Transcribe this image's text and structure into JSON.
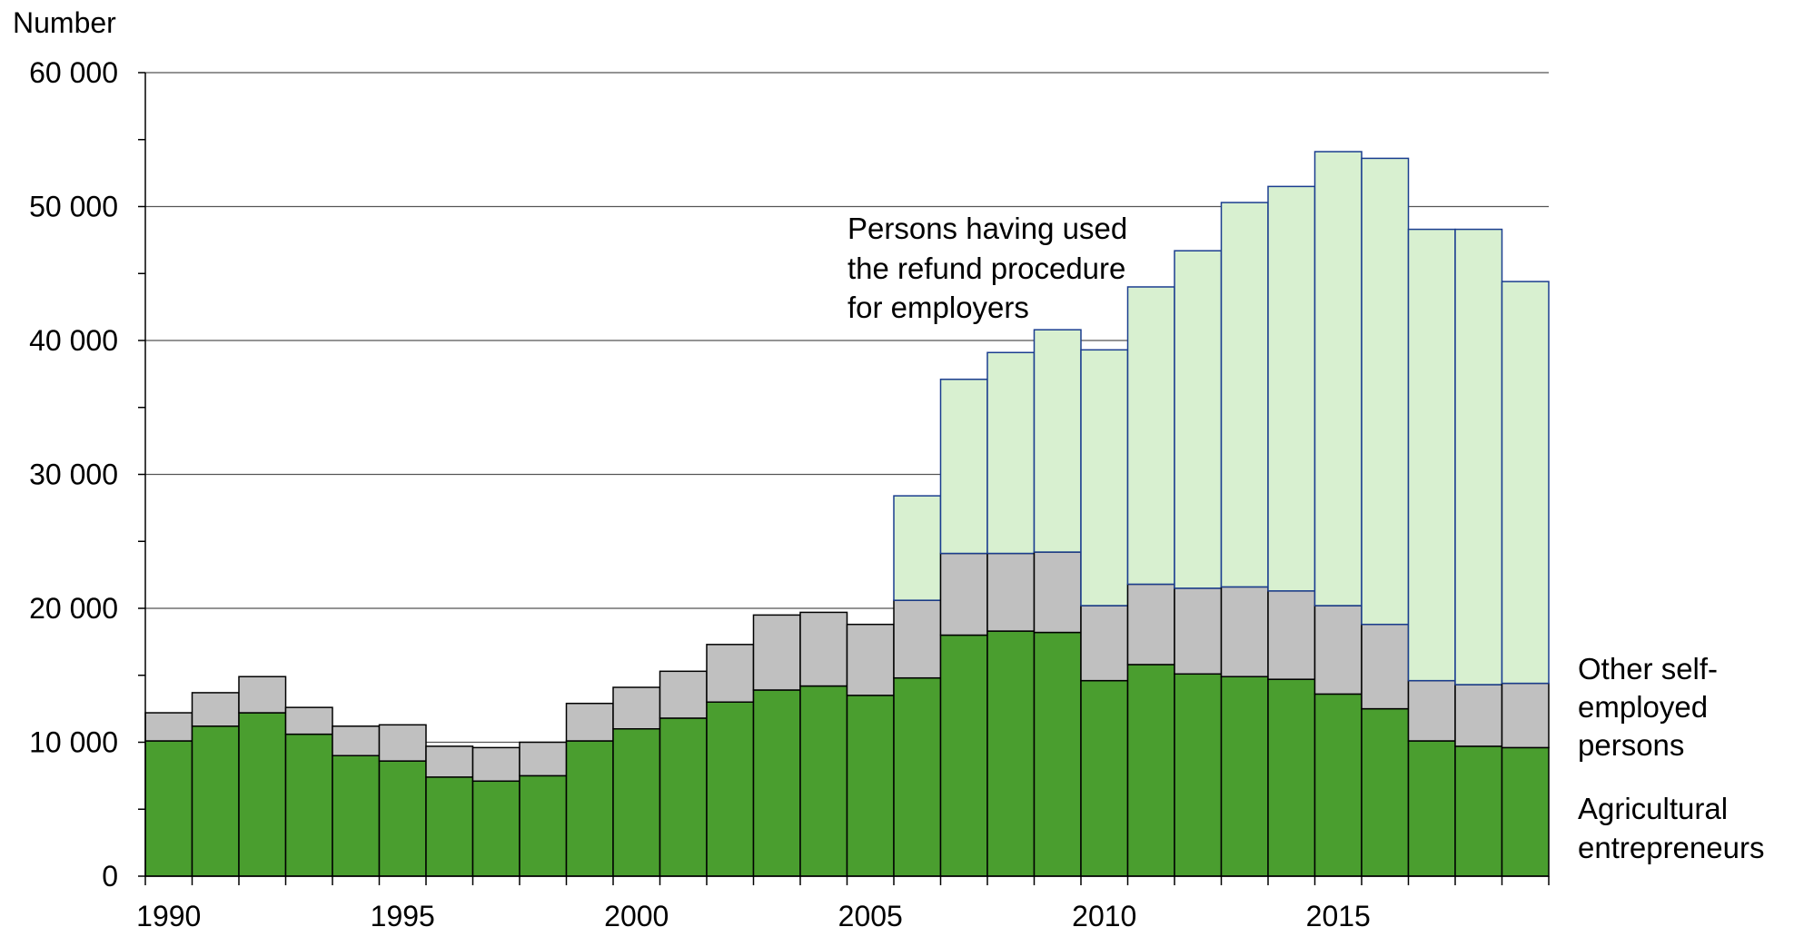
{
  "chart_data": {
    "type": "bar",
    "stacked": true,
    "ylabel": "Number",
    "ylim": [
      0,
      60000
    ],
    "y_ticks": [
      0,
      10000,
      20000,
      30000,
      40000,
      50000,
      60000
    ],
    "y_tick_labels": [
      "0",
      "10 000",
      "20 000",
      "30 000",
      "40 000",
      "50 000",
      "60 000"
    ],
    "x_tick_labels": [
      "1990",
      "1995",
      "2000",
      "2005",
      "2010",
      "2015"
    ],
    "categories": [
      1990,
      1991,
      1992,
      1993,
      1994,
      1995,
      1996,
      1997,
      1998,
      1999,
      2000,
      2001,
      2002,
      2003,
      2004,
      2005,
      2006,
      2007,
      2008,
      2009,
      2010,
      2011,
      2012,
      2013,
      2014,
      2015,
      2016,
      2017,
      2018,
      2019
    ],
    "grid": true,
    "legend": "inline labels",
    "series": [
      {
        "name": "Agricultural entrepreneurs",
        "color": "#4a9e2f",
        "values": [
          10100,
          11200,
          12200,
          10600,
          9000,
          8600,
          7400,
          7100,
          7500,
          10100,
          11000,
          11800,
          13000,
          13900,
          14200,
          13500,
          14800,
          18000,
          18300,
          18200,
          14600,
          15800,
          15100,
          14900,
          14700,
          13600,
          12500,
          10100,
          9700,
          9600
        ]
      },
      {
        "name": "Other self-employed persons",
        "color": "#c0c0c0",
        "values": [
          2100,
          2500,
          2700,
          2000,
          2200,
          2700,
          2300,
          2500,
          2500,
          2800,
          3100,
          3500,
          4300,
          5600,
          5500,
          5300,
          5800,
          6100,
          5800,
          6000,
          5600,
          6000,
          6400,
          6700,
          6600,
          6600,
          6300,
          4500,
          4600,
          4800
        ]
      },
      {
        "name": "Persons having used the refund procedure for employers",
        "color": "#d8f0d0",
        "values": [
          0,
          0,
          0,
          0,
          0,
          0,
          0,
          0,
          0,
          0,
          0,
          0,
          0,
          0,
          0,
          0,
          7800,
          13000,
          15000,
          16600,
          19100,
          22200,
          25200,
          28700,
          30200,
          33900,
          34800,
          33700,
          34000,
          30000
        ]
      }
    ],
    "annotations": {
      "refund": [
        "Persons having used",
        "the refund procedure",
        "for employers"
      ],
      "other": [
        "Other self-",
        "employed",
        "persons"
      ],
      "agri": [
        "Agricultural",
        "entrepreneurs"
      ]
    }
  }
}
